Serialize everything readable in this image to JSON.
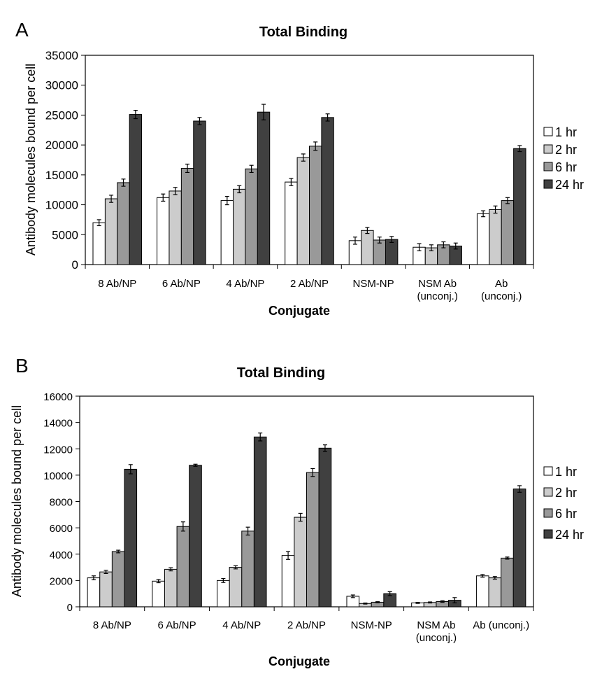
{
  "colors": {
    "series": [
      "#ffffff",
      "#cccccc",
      "#999999",
      "#404040"
    ],
    "axis": "#000000"
  },
  "chart_data": [
    {
      "panel_letter": "A",
      "type": "bar",
      "title": "Total Binding",
      "xlabel": "Conjugate",
      "ylabel": "Antibody molecules bound per cell",
      "ylim": [
        0,
        35000
      ],
      "yticks": [
        0,
        5000,
        10000,
        15000,
        20000,
        25000,
        30000,
        35000
      ],
      "grid": false,
      "legend_position": "right",
      "error_bars": true,
      "categories": [
        "8 Ab/NP",
        "6 Ab/NP",
        "4 Ab/NP",
        "2  Ab/NP",
        "NSM-NP",
        "NSM Ab\n(unconj.)",
        "Ab\n(unconj.)"
      ],
      "series": [
        {
          "name": "1 hr",
          "values": [
            7000,
            11200,
            10700,
            13800,
            4000,
            2900,
            8500
          ],
          "errors": [
            500,
            600,
            700,
            600,
            600,
            600,
            500
          ]
        },
        {
          "name": "2 hr",
          "values": [
            11000,
            12300,
            12600,
            17900,
            5700,
            2800,
            9200
          ],
          "errors": [
            600,
            600,
            600,
            600,
            500,
            500,
            600
          ]
        },
        {
          "name": "6 hr",
          "values": [
            13700,
            16100,
            16000,
            19800,
            4100,
            3300,
            10700
          ],
          "errors": [
            600,
            700,
            600,
            700,
            500,
            500,
            500
          ]
        },
        {
          "name": "24 hr",
          "values": [
            25100,
            24000,
            25500,
            24600,
            4200,
            3100,
            19400
          ],
          "errors": [
            700,
            600,
            1300,
            600,
            500,
            500,
            500
          ]
        }
      ]
    },
    {
      "panel_letter": "B",
      "type": "bar",
      "title": "Total Binding",
      "xlabel": "Conjugate",
      "ylabel": "Antibody molecules bound per cell",
      "ylim": [
        0,
        16000
      ],
      "yticks": [
        0,
        2000,
        4000,
        6000,
        8000,
        10000,
        12000,
        14000,
        16000
      ],
      "grid": false,
      "legend_position": "right",
      "error_bars": true,
      "categories": [
        "8 Ab/NP",
        "6 Ab/NP",
        "4 Ab/NP",
        "2  Ab/NP",
        "NSM-NP",
        "NSM Ab\n(unconj.)",
        "Ab (unconj.)"
      ],
      "series": [
        {
          "name": "1 hr",
          "values": [
            2200,
            1950,
            2000,
            3900,
            800,
            300,
            2350
          ],
          "errors": [
            150,
            120,
            150,
            300,
            100,
            40,
            100
          ]
        },
        {
          "name": "2 hr",
          "values": [
            2650,
            2850,
            3000,
            6800,
            250,
            330,
            2200
          ],
          "errors": [
            120,
            120,
            120,
            300,
            40,
            40,
            100
          ]
        },
        {
          "name": "6 hr",
          "values": [
            4200,
            6100,
            5750,
            10200,
            350,
            400,
            3700
          ],
          "errors": [
            100,
            350,
            300,
            300,
            40,
            60,
            80
          ]
        },
        {
          "name": "24 hr",
          "values": [
            10450,
            10750,
            12900,
            12050,
            1000,
            500,
            8950
          ],
          "errors": [
            350,
            80,
            300,
            250,
            150,
            200,
            250
          ]
        }
      ]
    }
  ]
}
